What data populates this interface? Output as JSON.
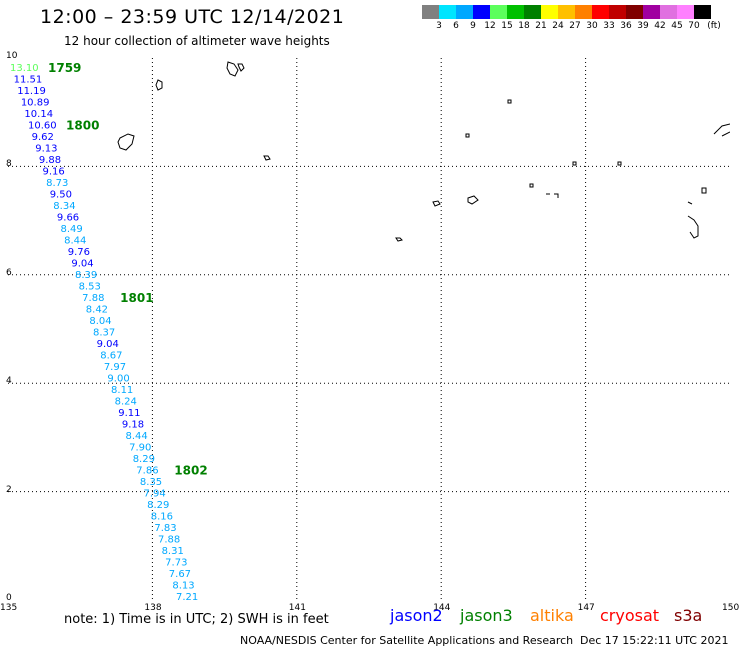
{
  "header": {
    "title": "12:00 – 23:59 UTC 12/14/2021",
    "subtitle": "12 hour collection of altimeter wave heights"
  },
  "color_scale": {
    "labels": [
      "3",
      "6",
      "9",
      "12",
      "15",
      "18",
      "21",
      "24",
      "27",
      "30",
      "33",
      "36",
      "39",
      "42",
      "45",
      "70",
      "(ft)"
    ],
    "colors": [
      "#808080",
      "#00e5ff",
      "#00a8ff",
      "#0000ff",
      "#5cff5c",
      "#00c000",
      "#008000",
      "#ffff00",
      "#ffc000",
      "#ff8000",
      "#ff0000",
      "#c00000",
      "#800000",
      "#a000a0",
      "#e070e0",
      "#ff80ff",
      "#000000"
    ]
  },
  "axes": {
    "x_ticks": [
      "135",
      "138",
      "141",
      "144",
      "147",
      "150"
    ],
    "y_ticks": [
      "0",
      "2",
      "4",
      "6",
      "8",
      "10"
    ]
  },
  "track": {
    "times": [
      {
        "label": "1759",
        "color": "#008000"
      },
      {
        "label": "1800",
        "color": "#008000"
      },
      {
        "label": "1801",
        "color": "#008000"
      },
      {
        "label": "1802",
        "color": "#008000"
      }
    ],
    "points": [
      {
        "v": "13.10",
        "c": "#5cff5c"
      },
      {
        "v": "11.51",
        "c": "#0000ff"
      },
      {
        "v": "11.19",
        "c": "#0000ff"
      },
      {
        "v": "10.89",
        "c": "#0000ff"
      },
      {
        "v": "10.14",
        "c": "#0000ff"
      },
      {
        "v": "10.60",
        "c": "#0000ff"
      },
      {
        "v": "9.62",
        "c": "#0000ff"
      },
      {
        "v": "9.13",
        "c": "#0000ff"
      },
      {
        "v": "9.88",
        "c": "#0000ff"
      },
      {
        "v": "9.16",
        "c": "#0000ff"
      },
      {
        "v": "8.73",
        "c": "#00a8ff"
      },
      {
        "v": "9.50",
        "c": "#0000ff"
      },
      {
        "v": "8.34",
        "c": "#00a8ff"
      },
      {
        "v": "9.66",
        "c": "#0000ff"
      },
      {
        "v": "8.49",
        "c": "#00a8ff"
      },
      {
        "v": "8.44",
        "c": "#00a8ff"
      },
      {
        "v": "9.76",
        "c": "#0000ff"
      },
      {
        "v": "9.04",
        "c": "#0000ff"
      },
      {
        "v": "8.39",
        "c": "#00a8ff"
      },
      {
        "v": "8.53",
        "c": "#00a8ff"
      },
      {
        "v": "7.88",
        "c": "#00a8ff"
      },
      {
        "v": "8.42",
        "c": "#00a8ff"
      },
      {
        "v": "8.04",
        "c": "#00a8ff"
      },
      {
        "v": "8.37",
        "c": "#00a8ff"
      },
      {
        "v": "9.04",
        "c": "#0000ff"
      },
      {
        "v": "8.67",
        "c": "#00a8ff"
      },
      {
        "v": "7.97",
        "c": "#00a8ff"
      },
      {
        "v": "9.00",
        "c": "#00a8ff"
      },
      {
        "v": "8.11",
        "c": "#00a8ff"
      },
      {
        "v": "8.24",
        "c": "#00a8ff"
      },
      {
        "v": "9.11",
        "c": "#0000ff"
      },
      {
        "v": "9.18",
        "c": "#0000ff"
      },
      {
        "v": "8.44",
        "c": "#00a8ff"
      },
      {
        "v": "7.90",
        "c": "#00a8ff"
      },
      {
        "v": "8.29",
        "c": "#00a8ff"
      },
      {
        "v": "7.86",
        "c": "#00a8ff"
      },
      {
        "v": "8.35",
        "c": "#00a8ff"
      },
      {
        "v": "7.94",
        "c": "#00a8ff"
      },
      {
        "v": "8.29",
        "c": "#00a8ff"
      },
      {
        "v": "8.16",
        "c": "#00a8ff"
      },
      {
        "v": "7.83",
        "c": "#00a8ff"
      },
      {
        "v": "7.88",
        "c": "#00a8ff"
      },
      {
        "v": "8.31",
        "c": "#00a8ff"
      },
      {
        "v": "7.73",
        "c": "#00a8ff"
      },
      {
        "v": "7.67",
        "c": "#00a8ff"
      },
      {
        "v": "8.13",
        "c": "#00a8ff"
      },
      {
        "v": "7.21",
        "c": "#00a8ff"
      }
    ]
  },
  "footer": {
    "note": "note:  1) Time is in UTC;  2) SWH is in feet",
    "legend": [
      {
        "name": "jason2",
        "color": "#0000ff"
      },
      {
        "name": "jason3",
        "color": "#008000"
      },
      {
        "name": "altika",
        "color": "#ff8000"
      },
      {
        "name": "cryosat",
        "color": "#ff0000"
      },
      {
        "name": "s3a",
        "color": "#800000"
      }
    ],
    "credit": "NOAA/NESDIS Center for Satellite Applications and Research",
    "timestamp": "Dec 17 15:22:11 UTC 2021"
  }
}
